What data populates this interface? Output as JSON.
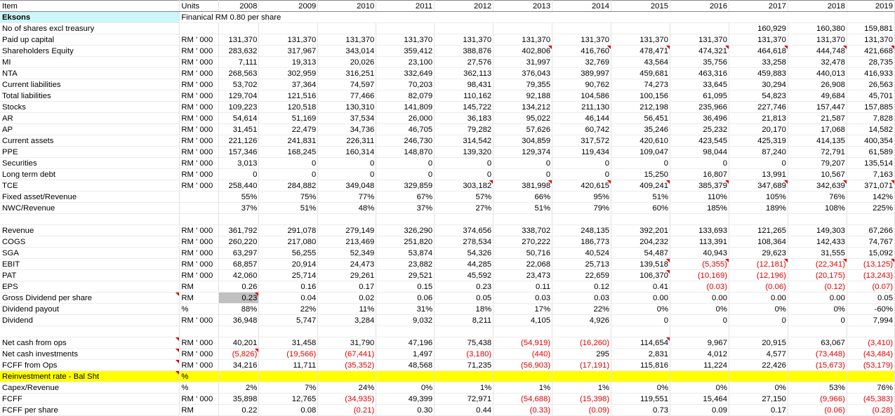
{
  "sheet": {
    "header": [
      "Item",
      "Units",
      "2008",
      "2009",
      "2010",
      "2011",
      "2012",
      "2013",
      "2014",
      "2015",
      "2016",
      "2017",
      "2018",
      "2019"
    ],
    "company": "Eksons",
    "company_note": "Finanical RM 0.80 per share",
    "rows": [
      {
        "label": "No of shares excl treasury",
        "unit": "",
        "cells": [
          "",
          "",
          "",
          "",
          "",
          "",
          "",
          "",
          "",
          "160,929",
          "160,380",
          "159,881"
        ]
      },
      {
        "label": "Paid up capital",
        "unit": "RM ' 000",
        "cells": [
          "131,370",
          "131,370",
          "131,370",
          "131,370",
          "131,370",
          "131,370",
          "131,370",
          "131,370",
          "131,370",
          "131,370",
          "131,370",
          "131,370"
        ]
      },
      {
        "label": "Shareholders Equity",
        "unit": "RM ' 000",
        "cells": [
          "283,632",
          "317,967",
          "343,014",
          "359,412",
          "388,876",
          "402,806",
          "416,760",
          "478,471",
          "474,321",
          "464,618",
          "444,748",
          "421,668"
        ]
      },
      {
        "label": "MI",
        "unit": "RM ' 000",
        "cells": [
          "7,111",
          "19,313",
          "20,026",
          "23,100",
          "27,576",
          "31,997",
          "32,769",
          "43,564",
          "35,756",
          "33,258",
          "32,478",
          "28,735"
        ]
      },
      {
        "label": "NTA",
        "unit": "RM ' 000",
        "cells": [
          "268,563",
          "302,959",
          "316,251",
          "332,649",
          "362,113",
          "376,043",
          "389,997",
          "459,681",
          "463,316",
          "459,883",
          "440,013",
          "416,933"
        ]
      },
      {
        "label": "Current liabilities",
        "unit": "RM ' 000",
        "cells": [
          "53,702",
          "37,364",
          "74,597",
          "70,203",
          "98,431",
          "79,355",
          "90,762",
          "74,273",
          "33,645",
          "30,294",
          "26,908",
          "26,563"
        ]
      },
      {
        "label": "Total liabilities",
        "unit": "RM ' 000",
        "cells": [
          "129,704",
          "121,516",
          "77,466",
          "82,079",
          "110,162",
          "92,188",
          "104,586",
          "100,156",
          "61,095",
          "54,823",
          "49,684",
          "45,701"
        ]
      },
      {
        "label": "Stocks",
        "unit": "RM ' 000",
        "cells": [
          "109,223",
          "120,518",
          "130,310",
          "141,809",
          "145,722",
          "134,212",
          "211,130",
          "212,198",
          "235,966",
          "227,746",
          "157,447",
          "157,885"
        ]
      },
      {
        "label": "AR",
        "unit": "RM ' 000",
        "cells": [
          "54,614",
          "51,169",
          "37,534",
          "26,000",
          "36,183",
          "95,022",
          "46,144",
          "56,451",
          "36,496",
          "21,813",
          "21,587",
          "7,828"
        ]
      },
      {
        "label": "AP",
        "unit": "RM ' 000",
        "cells": [
          "31,451",
          "22,479",
          "34,736",
          "46,705",
          "79,282",
          "57,626",
          "60,742",
          "35,246",
          "25,232",
          "20,170",
          "17,068",
          "14,582"
        ]
      },
      {
        "label": "Current assets",
        "unit": "RM ' 000",
        "cells": [
          "221,126",
          "241,831",
          "226,311",
          "246,730",
          "314,542",
          "304,859",
          "317,572",
          "420,610",
          "423,545",
          "425,319",
          "414,135",
          "400,354"
        ]
      },
      {
        "label": "PPE",
        "unit": "RM ' 000",
        "cells": [
          "157,346",
          "168,245",
          "160,314",
          "148,870",
          "139,320",
          "129,374",
          "119,434",
          "109,047",
          "98,044",
          "87,240",
          "72,791",
          "61,589"
        ]
      },
      {
        "label": "Securities",
        "unit": "RM ' 000",
        "cells": [
          "3,013",
          "0",
          "0",
          "0",
          "0",
          "0",
          "0",
          "0",
          "0",
          "0",
          "79,207",
          "135,514"
        ]
      },
      {
        "label": "Long term debt",
        "unit": "RM ' 000",
        "cells": [
          "0",
          "0",
          "0",
          "0",
          "0",
          "0",
          "0",
          "15,250",
          "16,807",
          "13,991",
          "10,567",
          "7,163"
        ]
      },
      {
        "label": "TCE",
        "unit": "RM ' 000",
        "cells": [
          "258,440",
          "284,882",
          "349,048",
          "329,859",
          "303,182",
          "381,998",
          "420,615",
          "409,241",
          "385,379",
          "347,689",
          "342,639",
          "371,071"
        ]
      },
      {
        "label": "Fixed asset/Revenue",
        "unit": "",
        "cells": [
          "55%",
          "75%",
          "77%",
          "67%",
          "57%",
          "66%",
          "95%",
          "51%",
          "110%",
          "105%",
          "76%",
          "142%"
        ]
      },
      {
        "label": "NWC/Revenue",
        "unit": "",
        "cells": [
          "37%",
          "51%",
          "48%",
          "37%",
          "27%",
          "51%",
          "79%",
          "60%",
          "185%",
          "189%",
          "108%",
          "225%"
        ]
      },
      {
        "label": "",
        "unit": "",
        "cells": [
          "",
          "",
          "",
          "",
          "",
          "",
          "",
          "",
          "",
          "",
          "",
          ""
        ]
      },
      {
        "label": "Revenue",
        "unit": "RM ' 000",
        "cells": [
          "361,792",
          "291,078",
          "279,149",
          "326,290",
          "374,656",
          "338,702",
          "248,135",
          "392,201",
          "133,693",
          "121,265",
          "149,303",
          "67,266"
        ]
      },
      {
        "label": "COGS",
        "unit": "RM ' 000",
        "cells": [
          "260,220",
          "217,080",
          "213,469",
          "251,820",
          "278,534",
          "270,222",
          "186,773",
          "204,232",
          "113,391",
          "108,364",
          "142,433",
          "74,767"
        ]
      },
      {
        "label": "SGA",
        "unit": "RM ' 000",
        "cells": [
          "63,297",
          "56,255",
          "52,349",
          "53,874",
          "54,326",
          "50,716",
          "40,524",
          "54,487",
          "40,943",
          "29,623",
          "31,555",
          "15,092"
        ]
      },
      {
        "label": "EBIT",
        "unit": "RM ' 000",
        "cells": [
          "68,857",
          "20,914",
          "24,473",
          "23,882",
          "44,285",
          "22,068",
          "25,713",
          "139,518",
          "(5,355)",
          "(12,181)",
          "(22,341)",
          "(13,125)"
        ]
      },
      {
        "label": "PAT",
        "unit": "RM ' 000",
        "cells": [
          "42,060",
          "25,714",
          "29,261",
          "29,521",
          "45,592",
          "23,473",
          "22,659",
          "106,370",
          "(10,169)",
          "(12,196)",
          "(20,175)",
          "(13,243)"
        ]
      },
      {
        "label": "EPS",
        "unit": "RM",
        "cells": [
          "0.26",
          "0.16",
          "0.17",
          "0.15",
          "0.23",
          "0.11",
          "0.12",
          "0.41",
          "(0.03)",
          "(0.06)",
          "(0.12)",
          "(0.07)"
        ]
      },
      {
        "label": "Gross Dividend per share",
        "unit": "RM",
        "cells": [
          "0.23",
          "0.04",
          "0.02",
          "0.06",
          "0.05",
          "0.03",
          "0.03",
          "0.00",
          "0.00",
          "0.00",
          "0.00",
          "0.05"
        ]
      },
      {
        "label": "Dividend payout",
        "unit": "%",
        "cells": [
          "88%",
          "22%",
          "11%",
          "31%",
          "18%",
          "17%",
          "22%",
          "0%",
          "0%",
          "0%",
          "0%",
          "-60%"
        ]
      },
      {
        "label": "Dividend",
        "unit": "RM ' 000",
        "cells": [
          "36,948",
          "5,747",
          "3,284",
          "9,032",
          "8,211",
          "4,105",
          "4,926",
          "0",
          "0",
          "0",
          "0",
          "7,994"
        ]
      },
      {
        "label": "",
        "unit": "",
        "cells": [
          "",
          "",
          "",
          "",
          "",
          "",
          "",
          "",
          "",
          "",
          "",
          ""
        ]
      },
      {
        "label": "Net cash from ops",
        "unit": "RM ' 000",
        "cells": [
          "40,201",
          "31,458",
          "31,790",
          "47,196",
          "75,438",
          "(54,919)",
          "(16,260)",
          "114,654",
          "9,967",
          "20,915",
          "63,067",
          "(3,410)"
        ]
      },
      {
        "label": "Net cash investments",
        "unit": "RM ' 000",
        "cells": [
          "(5,826)",
          "(19,566)",
          "(67,441)",
          "1,497",
          "(3,180)",
          "(440)",
          "295",
          "2,831",
          "4,012",
          "4,577",
          "(73,448)",
          "(43,484)"
        ]
      },
      {
        "label": "FCFF from Ops",
        "unit": "RM ' 000",
        "cells": [
          "34,216",
          "11,711",
          "(35,352)",
          "48,568",
          "71,235",
          "(56,903)",
          "(17,191)",
          "115,816",
          "11,224",
          "22,426",
          "(15,673)",
          "(53,179)"
        ]
      },
      {
        "label": "Reinvestment rate - Bal Sht",
        "unit": "%",
        "cells": [
          "",
          "",
          "",
          "",
          "",
          "",
          "",
          "",
          "",
          "",
          "",
          ""
        ]
      },
      {
        "label": "Capex/Revenue",
        "unit": "%",
        "cells": [
          "2%",
          "7%",
          "24%",
          "0%",
          "1%",
          "1%",
          "1%",
          "0%",
          "0%",
          "0%",
          "53%",
          "76%"
        ]
      },
      {
        "label": "FCFF",
        "unit": "RM ' 000",
        "cells": [
          "35,898",
          "12,765",
          "(34,935)",
          "49,399",
          "72,971",
          "(54,688)",
          "(15,398)",
          "119,551",
          "15,464",
          "27,150",
          "(9,966)",
          "(45,383)"
        ]
      },
      {
        "label": "FCFF per share",
        "unit": "RM",
        "cells": [
          "0.22",
          "0.08",
          "(0.21)",
          "0.30",
          "0.44",
          "(0.33)",
          "(0.09)",
          "0.73",
          "0.09",
          "0.17",
          "(0.06)",
          "(0.28)"
        ]
      }
    ],
    "marks": {
      "2": [
        5,
        6,
        7,
        8,
        9,
        10,
        11
      ],
      "14": [
        4,
        5,
        6,
        7,
        8,
        9,
        10,
        11
      ],
      "21": [
        7,
        8,
        9,
        10,
        11
      ],
      "22": [
        7
      ],
      "24": [
        0
      ],
      "28": [
        7
      ],
      "29": [
        0
      ]
    },
    "label_marks": [
      24,
      28,
      29,
      30,
      31
    ],
    "yellow_rows": [
      31
    ],
    "grey_cells": {
      "24": [
        0
      ]
    },
    "colors": {
      "negative": "#e00000",
      "highlight_cyan": "#ccf7fa",
      "highlight_yellow": "#ffff00",
      "selected_grey": "#c0c0c0"
    }
  }
}
